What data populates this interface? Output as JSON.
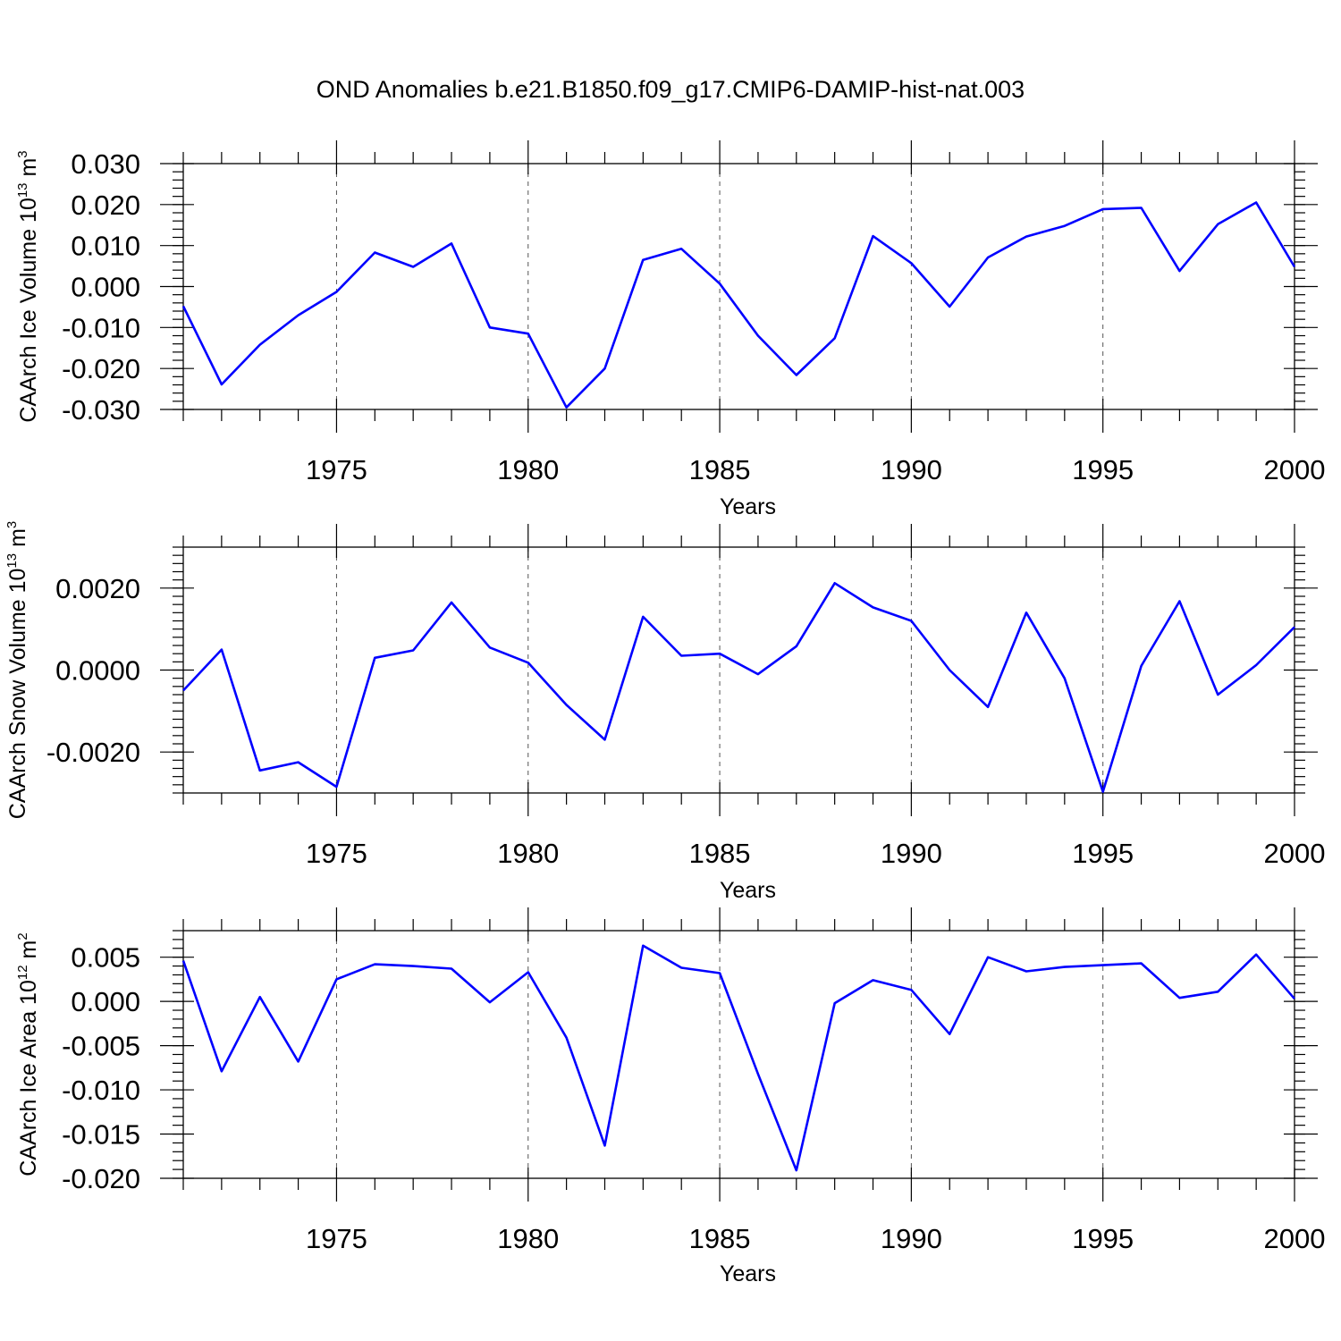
{
  "title": "OND Anomalies b.e21.B1850.f09_g17.CMIP6-DAMIP-hist-nat.003",
  "line_color": "#0000ff",
  "chart_data": [
    {
      "type": "line",
      "ylabel": "CAArch Ice Volume 10",
      "ylabel_exp": "13",
      "ylabel_unit": "m",
      "ylabel_unit_exp": "3",
      "xlabel": "Years",
      "xlim": [
        1971,
        2000
      ],
      "ylim": [
        -0.03,
        0.03
      ],
      "yticks": [
        -0.03,
        -0.02,
        -0.01,
        0.0,
        0.01,
        0.02,
        0.03
      ],
      "ytick_labels": [
        "-0.030",
        "-0.020",
        "-0.010",
        "0.000",
        "0.010",
        "0.020",
        "0.030"
      ],
      "yminor_step": 0.002,
      "xticks": [
        1975,
        1980,
        1985,
        1990,
        1995,
        2000
      ],
      "xtick_labels": [
        "1975",
        "1980",
        "1985",
        "1990",
        "1995",
        "2000"
      ],
      "x": [
        1971,
        1972,
        1973,
        1974,
        1975,
        1976,
        1977,
        1978,
        1979,
        1980,
        1981,
        1982,
        1983,
        1984,
        1985,
        1986,
        1987,
        1988,
        1989,
        1990,
        1991,
        1992,
        1993,
        1994,
        1995,
        1996,
        1997,
        1998,
        1999,
        2000
      ],
      "series": [
        {
          "name": "CAArch Ice Volume",
          "values": [
            -0.0048,
            -0.0239,
            -0.0142,
            -0.007,
            -0.0013,
            0.0083,
            0.0048,
            0.0105,
            -0.01,
            -0.0115,
            -0.0295,
            -0.02,
            0.0065,
            0.0092,
            0.0007,
            -0.012,
            -0.0216,
            -0.0126,
            0.0123,
            0.0057,
            -0.0049,
            0.0071,
            0.0122,
            0.0148,
            0.0189,
            0.0192,
            0.0038,
            0.0152,
            0.0205,
            0.0048
          ]
        }
      ]
    },
    {
      "type": "line",
      "ylabel": "CAArch Snow Volume 10",
      "ylabel_exp": "13",
      "ylabel_unit": "m",
      "ylabel_unit_exp": "3",
      "xlabel": "Years",
      "xlim": [
        1971,
        2000
      ],
      "ylim": [
        -0.003,
        0.003
      ],
      "yticks": [
        -0.002,
        0.0,
        0.002
      ],
      "ytick_labels": [
        "-0.0020",
        "0.0000",
        "0.0020"
      ],
      "yminor_step": 0.0002,
      "xticks": [
        1975,
        1980,
        1985,
        1990,
        1995,
        2000
      ],
      "xtick_labels": [
        "1975",
        "1980",
        "1985",
        "1990",
        "1995",
        "2000"
      ],
      "x": [
        1971,
        1972,
        1973,
        1974,
        1975,
        1976,
        1977,
        1978,
        1979,
        1980,
        1981,
        1982,
        1983,
        1984,
        1985,
        1986,
        1987,
        1988,
        1989,
        1990,
        1991,
        1992,
        1993,
        1994,
        1995,
        1996,
        1997,
        1998,
        1999,
        2000
      ],
      "series": [
        {
          "name": "CAArch Snow Volume",
          "values": [
            -0.0005,
            0.0005,
            -0.00245,
            -0.00225,
            -0.00285,
            0.0003,
            0.00048,
            0.00165,
            0.00055,
            0.00018,
            -0.00085,
            -0.0017,
            0.0013,
            0.00035,
            0.0004,
            -0.0001,
            0.00058,
            0.00212,
            0.00153,
            0.0012,
            0.0,
            -0.0009,
            0.0014,
            -0.0002,
            -0.00297,
            0.0001,
            0.00168,
            -0.0006,
            0.00012,
            0.00105
          ]
        }
      ]
    },
    {
      "type": "line",
      "ylabel": "CAArch Ice Area 10",
      "ylabel_exp": "12",
      "ylabel_unit": "m",
      "ylabel_unit_exp": "2",
      "xlabel": "Years",
      "xlim": [
        1971,
        2000
      ],
      "ylim": [
        -0.02,
        0.008
      ],
      "yticks": [
        -0.02,
        -0.015,
        -0.01,
        -0.005,
        0.0,
        0.005
      ],
      "ytick_labels": [
        "-0.020",
        "-0.015",
        "-0.010",
        "-0.005",
        "0.000",
        "0.005"
      ],
      "yminor_step": 0.001,
      "xticks": [
        1975,
        1980,
        1985,
        1990,
        1995,
        2000
      ],
      "xtick_labels": [
        "1975",
        "1980",
        "1985",
        "1990",
        "1995",
        "2000"
      ],
      "x": [
        1971,
        1972,
        1973,
        1974,
        1975,
        1976,
        1977,
        1978,
        1979,
        1980,
        1981,
        1982,
        1983,
        1984,
        1985,
        1986,
        1987,
        1988,
        1989,
        1990,
        1991,
        1992,
        1993,
        1994,
        1995,
        1996,
        1997,
        1998,
        1999,
        2000
      ],
      "series": [
        {
          "name": "CAArch Ice Area",
          "values": [
            0.0046,
            -0.0079,
            0.0005,
            -0.0068,
            0.0025,
            0.0042,
            0.004,
            0.0037,
            -0.0001,
            0.0033,
            -0.0041,
            -0.0163,
            0.0063,
            0.0038,
            0.0032,
            -0.0082,
            -0.0191,
            -0.0002,
            0.0024,
            0.0013,
            -0.0037,
            0.005,
            0.0034,
            0.0039,
            0.0041,
            0.0043,
            0.0004,
            0.0011,
            0.0053,
            0.0003
          ]
        }
      ]
    }
  ]
}
